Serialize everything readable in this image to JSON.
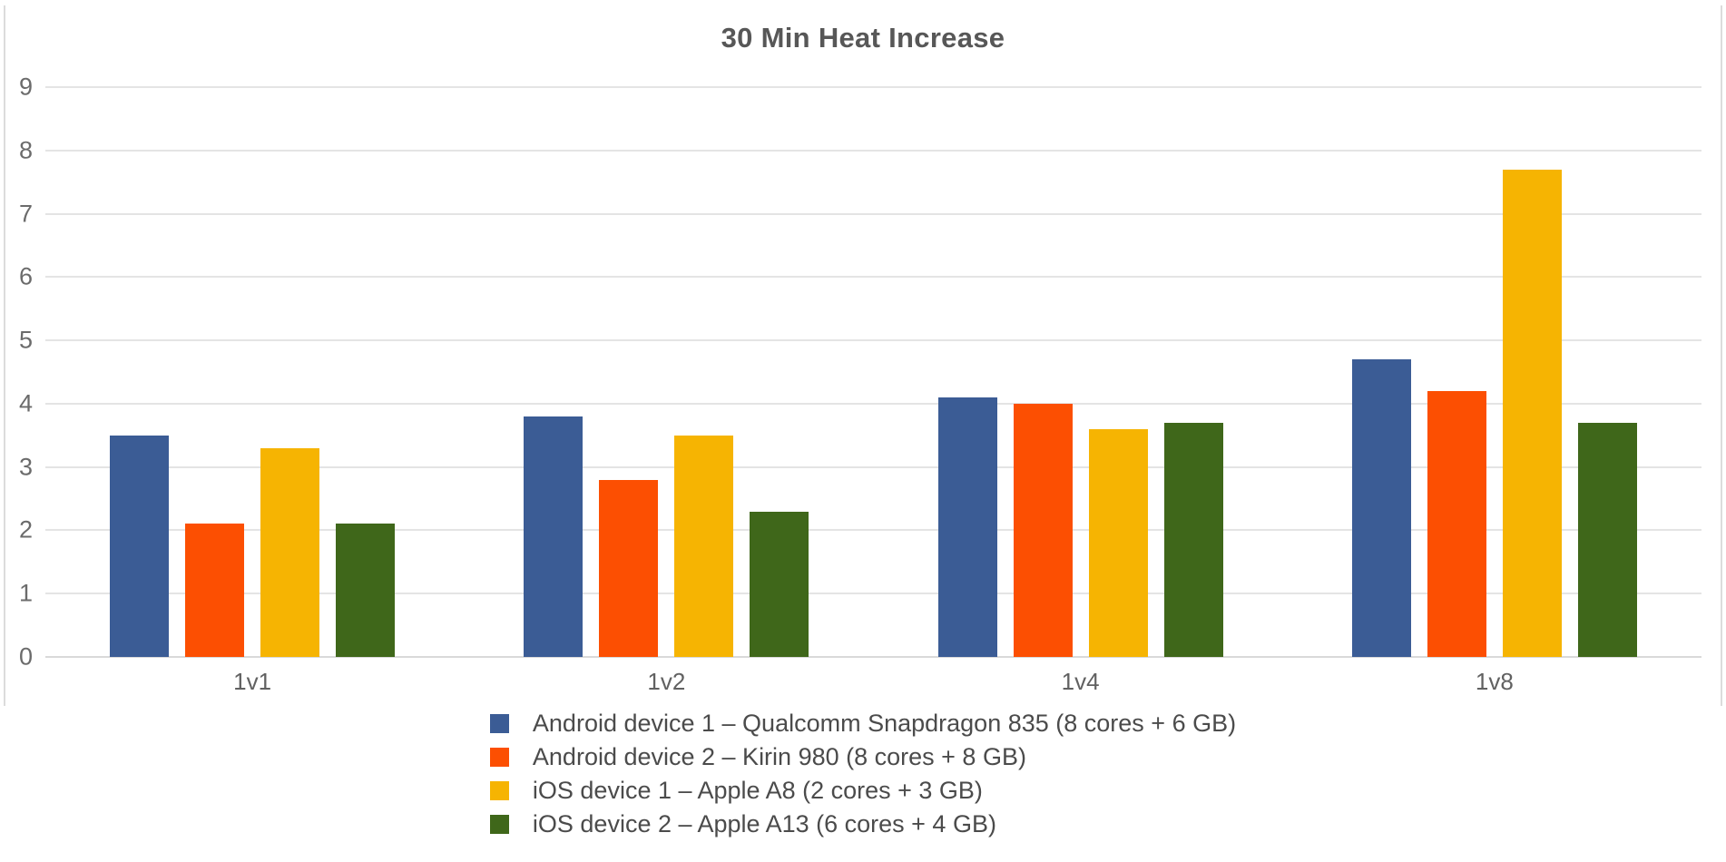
{
  "chart_data": {
    "type": "bar",
    "title": "30 Min Heat Increase",
    "categories": [
      "1v1",
      "1v2",
      "1v4",
      "1v8"
    ],
    "series": [
      {
        "name": "Android device 1 – Qualcomm Snapdragon 835 (8 cores + 6 GB)",
        "color": "#3B5C95",
        "values": [
          3.5,
          3.8,
          4.1,
          4.7
        ]
      },
      {
        "name": "Android device 2 – Kirin 980 (8 cores + 8 GB)",
        "color": "#FC4F02",
        "values": [
          2.1,
          2.8,
          4.0,
          4.2
        ]
      },
      {
        "name": "iOS device 1 – Apple A8 (2 cores + 3 GB)",
        "color": "#F6B402",
        "values": [
          3.3,
          3.5,
          3.6,
          7.7
        ]
      },
      {
        "name": "iOS device 2 – Apple A13 (6 cores + 4 GB)",
        "color": "#3F671A",
        "values": [
          2.1,
          2.3,
          3.7,
          3.7
        ]
      }
    ],
    "y_axis": {
      "min": 0,
      "max": 9,
      "step": 1,
      "tick_labels": [
        "0",
        "1",
        "2",
        "3",
        "4",
        "5",
        "6",
        "7",
        "8",
        "9"
      ]
    },
    "grid": true,
    "legend_position": "bottom"
  }
}
